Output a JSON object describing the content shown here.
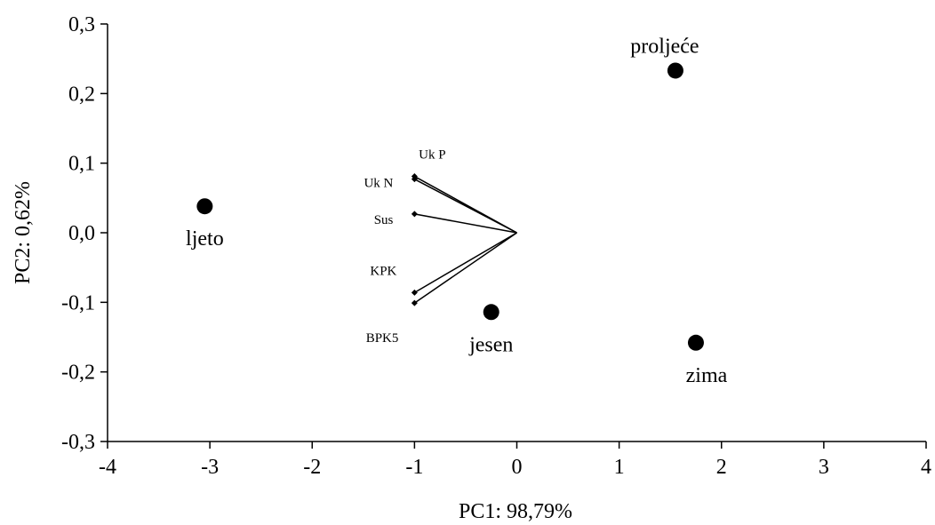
{
  "chart_data": {
    "type": "scatter",
    "xlabel": "PC1: 98,79%",
    "ylabel": "PC2: 0,62%",
    "xlim": [
      -4,
      4
    ],
    "ylim": [
      -0.3,
      0.3
    ],
    "x_ticks": [
      "-4",
      "-3",
      "-2",
      "-1",
      "0",
      "1",
      "2",
      "3",
      "4"
    ],
    "y_ticks": [
      "-0,3",
      "-0,2",
      "-0,1",
      "0,0",
      "0,1",
      "0,2",
      "0,3"
    ],
    "grid": false,
    "points": [
      {
        "label": "proljeće",
        "x": 1.55,
        "y": 0.233
      },
      {
        "label": "ljeto",
        "x": -3.05,
        "y": 0.038
      },
      {
        "label": "jesen",
        "x": -0.25,
        "y": -0.114
      },
      {
        "label": "zima",
        "x": 1.75,
        "y": -0.158
      }
    ],
    "vectors": [
      {
        "label": "Uk P",
        "x": -1.0,
        "y": 0.081
      },
      {
        "label": "Uk N",
        "x": -1.0,
        "y": 0.077
      },
      {
        "label": "Sus",
        "x": -1.0,
        "y": 0.027
      },
      {
        "label": "KPK",
        "x": -1.0,
        "y": -0.086
      },
      {
        "label": "BPK5",
        "x": -1.0,
        "y": -0.101
      }
    ]
  }
}
